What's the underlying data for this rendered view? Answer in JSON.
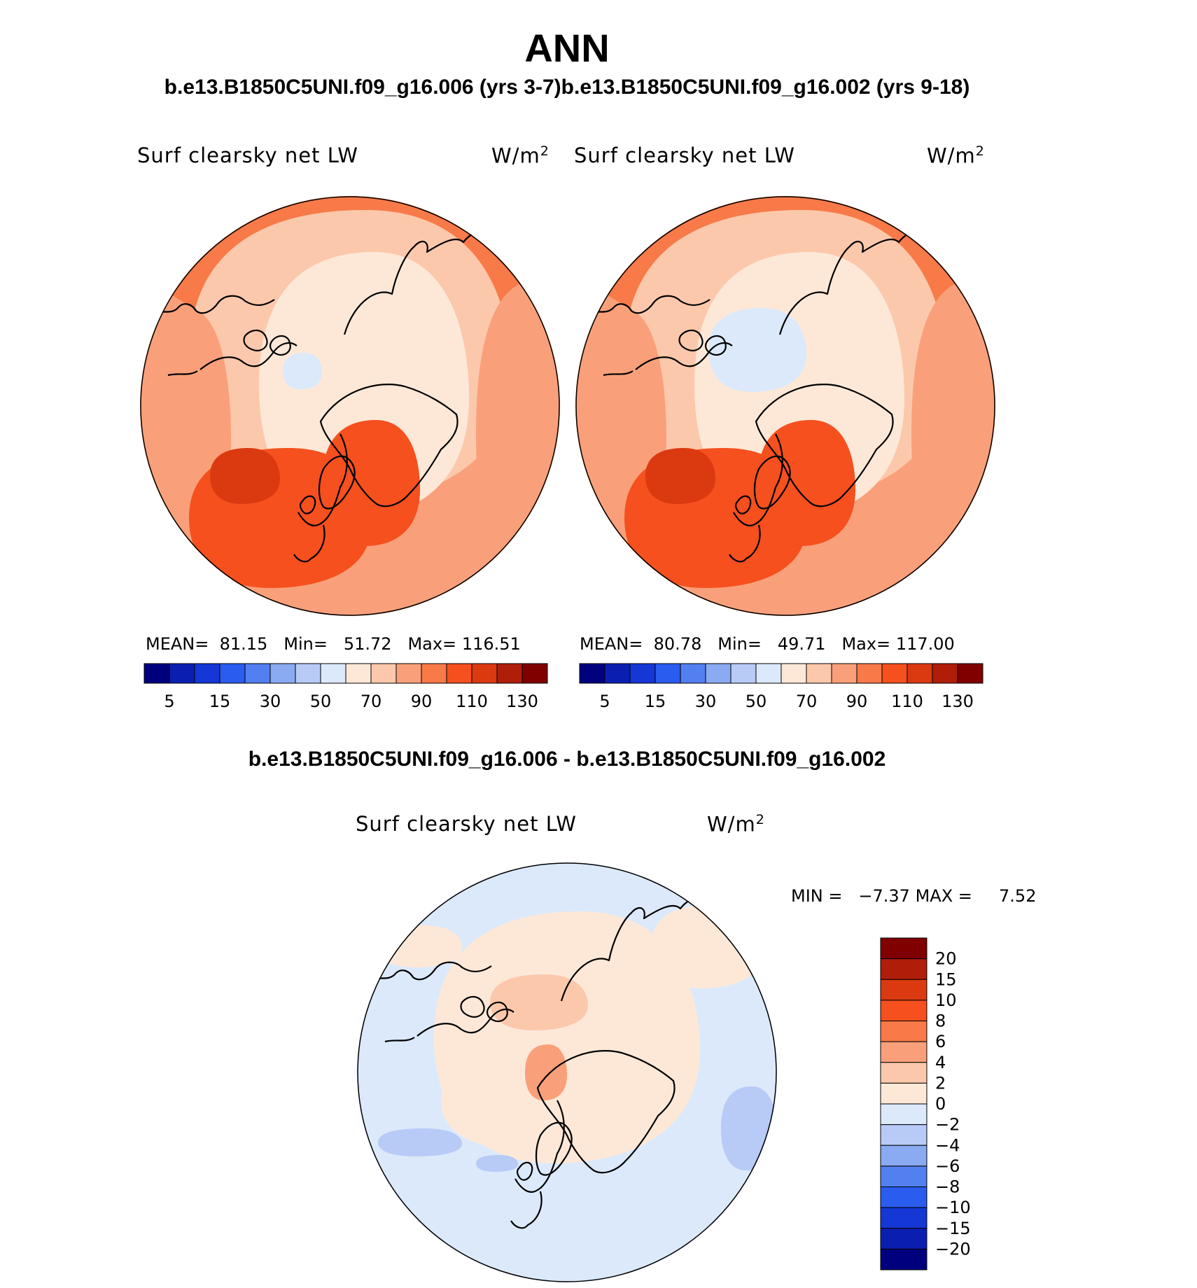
{
  "header": {
    "title": "ANN",
    "subtitle_top": "b.e13.B1850C5UNI.f09_g16.006 (yrs 3-7)b.e13.B1850C5UNI.f09_g16.002 (yrs 9-18)",
    "subtitle_diff": "b.e13.B1850C5UNI.f09_g16.006 - b.e13.B1850C5UNI.f09_g16.002"
  },
  "colors": {
    "abs_scale": [
      "#00007f",
      "#0a1fb0",
      "#1437d6",
      "#2a5cf0",
      "#5280f0",
      "#8aaaf2",
      "#b8caf6",
      "#dce9fb",
      "#fde8d8",
      "#fcc8ab",
      "#f9a07a",
      "#f77a48",
      "#f5501e",
      "#db3a10",
      "#b01e0a",
      "#800000"
    ],
    "diff_scale": [
      "#00007f",
      "#0a1fb0",
      "#1437d6",
      "#2a5cf0",
      "#5280f0",
      "#8aaaf2",
      "#b8caf6",
      "#dce9fb",
      "#fde8d8",
      "#fcc8ab",
      "#f9a07a",
      "#f77a48",
      "#f5501e",
      "#db3a10",
      "#b01e0a",
      "#800000"
    ]
  },
  "chart_data": [
    {
      "type": "heatmap",
      "projection": "north-polar-stereographic",
      "case": "b.e13.B1850C5UNI.f09_g16.006 (yrs 3-7)",
      "title": "Surf clearsky net LW",
      "units": "W/m",
      "units_exp": "2",
      "stats": {
        "mean_label": "MEAN=",
        "mean": "81.15",
        "min_label": "Min=",
        "min": "51.72",
        "max_label": "Max=",
        "max": "116.51"
      },
      "colorbar": {
        "orientation": "horizontal",
        "levels": [
          5,
          10,
          15,
          20,
          30,
          40,
          50,
          60,
          70,
          80,
          90,
          100,
          110,
          120,
          130
        ],
        "labels": [
          "5",
          "15",
          "30",
          "50",
          "70",
          "90",
          "110",
          "130"
        ]
      }
    },
    {
      "type": "heatmap",
      "projection": "north-polar-stereographic",
      "case": "b.e13.B1850C5UNI.f09_g16.002 (yrs 9-18)",
      "title": "Surf clearsky net LW",
      "units": "W/m",
      "units_exp": "2",
      "stats": {
        "mean_label": "MEAN=",
        "mean": "80.78",
        "min_label": "Min=",
        "min": "49.71",
        "max_label": "Max=",
        "max": "117.00"
      },
      "colorbar": {
        "orientation": "horizontal",
        "levels": [
          5,
          10,
          15,
          20,
          30,
          40,
          50,
          60,
          70,
          80,
          90,
          100,
          110,
          120,
          130
        ],
        "labels": [
          "5",
          "15",
          "30",
          "50",
          "70",
          "90",
          "110",
          "130"
        ]
      }
    },
    {
      "type": "heatmap",
      "projection": "north-polar-stereographic",
      "case": "difference",
      "title": "Surf clearsky net LW",
      "units": "W/m",
      "units_exp": "2",
      "stats": {
        "min_label": "MIN =",
        "min": "−7.37",
        "max_label": "MAX =",
        "max": "7.52"
      },
      "colorbar": {
        "orientation": "vertical",
        "levels": [
          20,
          15,
          10,
          8,
          6,
          4,
          2,
          0,
          -2,
          -4,
          -6,
          -8,
          -10,
          -15,
          -20
        ],
        "labels": [
          "20",
          "15",
          "10",
          "8",
          "6",
          "4",
          "2",
          "0",
          "−2",
          "−4",
          "−6",
          "−8",
          "−10",
          "−15",
          "−20"
        ]
      }
    }
  ]
}
